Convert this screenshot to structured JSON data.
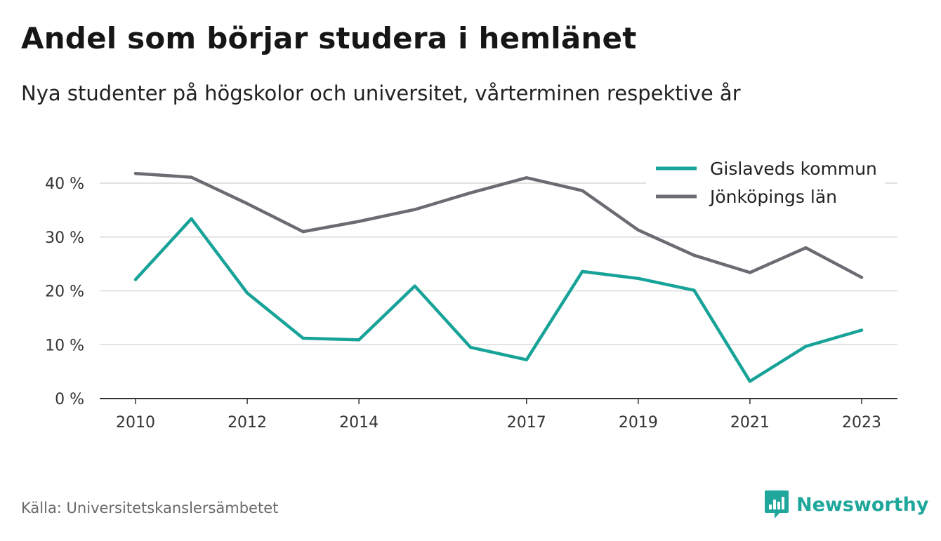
{
  "title": "Andel som börjar studera i hemlänet",
  "subtitle": "Nya studenter på högskolor och universitet, vårterminen respektive år",
  "source": "Källa: Universitetskanslersämbetet",
  "brand": {
    "name": "Newsworthy",
    "icon": "newsworthy-logo-icon",
    "color": "#1fa79c"
  },
  "chart_data": {
    "type": "line",
    "x": [
      2010,
      2011,
      2012,
      2013,
      2014,
      2015,
      2016,
      2017,
      2018,
      2019,
      2020,
      2021,
      2022,
      2023
    ],
    "x_tick_labels": [
      "2010",
      "2012",
      "2014",
      "2017",
      "2019",
      "2021",
      "2023"
    ],
    "y_tick_labels": [
      "0 %",
      "10 %",
      "20 %",
      "30 %",
      "40 %"
    ],
    "ylim": [
      0,
      40
    ],
    "y_ticks": [
      0,
      10,
      20,
      30,
      40
    ],
    "grid": true,
    "legend_position": "top-right",
    "series": [
      {
        "name": "Gislaveds kommun",
        "color": "#18a398",
        "values": [
          22.1,
          33.4,
          19.6,
          11.2,
          10.9,
          20.9,
          9.5,
          7.2,
          23.6,
          22.3,
          20.1,
          3.2,
          9.7,
          12.7
        ]
      },
      {
        "name": "Jönköpings län",
        "color": "#6b6b73",
        "values": [
          41.8,
          41.1,
          36.2,
          31.0,
          32.9,
          35.1,
          38.2,
          41.0,
          38.6,
          31.3,
          26.6,
          23.4,
          28.0,
          22.5
        ]
      }
    ]
  }
}
